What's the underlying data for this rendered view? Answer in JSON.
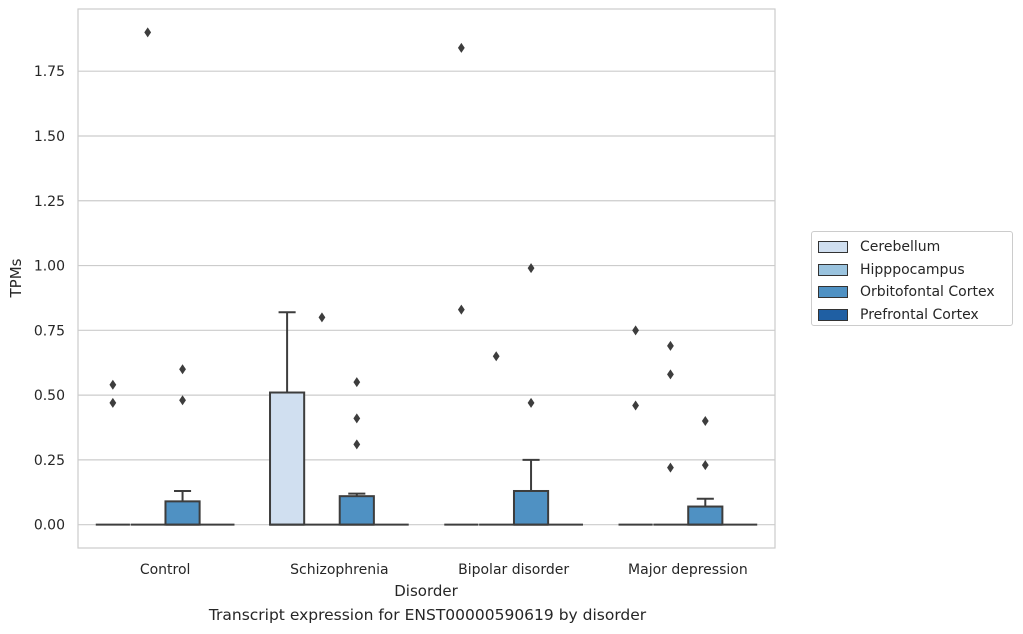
{
  "chart_data": {
    "type": "box",
    "title": "",
    "xlabel": "Disorder",
    "ylabel": "TPMs",
    "caption": "Transcript expression for ENST00000590619 by disorder",
    "ylim": [
      -0.09,
      1.99
    ],
    "yticks": [
      "0.00",
      "0.25",
      "0.50",
      "0.75",
      "1.00",
      "1.25",
      "1.50",
      "1.75"
    ],
    "ytick_values": [
      0,
      0.25,
      0.5,
      0.75,
      1.0,
      1.25,
      1.5,
      1.75
    ],
    "grid": true,
    "legend_position": "right",
    "categories": [
      "Control",
      "Schizophrenia",
      "Bipolar disorder",
      "Major depression"
    ],
    "series": [
      {
        "name": "Cerebellum",
        "color": "#d0dff0",
        "boxes": [
          {
            "q1": 0,
            "median": 0,
            "q3": 0,
            "whisker_low": 0,
            "whisker_high": 0,
            "outliers": [
              0.54,
              0.47
            ]
          },
          {
            "q1": 0,
            "median": 0,
            "q3": 0.51,
            "whisker_low": 0,
            "whisker_high": 0.82,
            "outliers": []
          },
          {
            "q1": 0,
            "median": 0,
            "q3": 0,
            "whisker_low": 0,
            "whisker_high": 0,
            "outliers": [
              1.84,
              0.83
            ]
          },
          {
            "q1": 0,
            "median": 0,
            "q3": 0,
            "whisker_low": 0,
            "whisker_high": 0,
            "outliers": [
              0.75,
              0.46
            ]
          }
        ]
      },
      {
        "name": "Hipppocampus",
        "color": "#9ac3de",
        "boxes": [
          {
            "q1": 0,
            "median": 0,
            "q3": 0,
            "whisker_low": 0,
            "whisker_high": 0,
            "outliers": [
              1.9
            ]
          },
          {
            "q1": 0,
            "median": 0,
            "q3": 0,
            "whisker_low": 0,
            "whisker_high": 0,
            "outliers": [
              0.8
            ]
          },
          {
            "q1": 0,
            "median": 0,
            "q3": 0,
            "whisker_low": 0,
            "whisker_high": 0,
            "outliers": [
              0.65
            ]
          },
          {
            "q1": 0,
            "median": 0,
            "q3": 0,
            "whisker_low": 0,
            "whisker_high": 0,
            "outliers": [
              0.69,
              0.58,
              0.22
            ]
          }
        ]
      },
      {
        "name": "Orbitofontal Cortex",
        "color": "#4f91c3",
        "boxes": [
          {
            "q1": 0,
            "median": 0,
            "q3": 0.09,
            "whisker_low": 0,
            "whisker_high": 0.13,
            "outliers": [
              0.6,
              0.48
            ]
          },
          {
            "q1": 0,
            "median": 0,
            "q3": 0.11,
            "whisker_low": 0,
            "whisker_high": 0.12,
            "outliers": [
              0.55,
              0.41,
              0.31
            ]
          },
          {
            "q1": 0,
            "median": 0,
            "q3": 0.13,
            "whisker_low": 0,
            "whisker_high": 0.25,
            "outliers": [
              0.99,
              0.47
            ]
          },
          {
            "q1": 0,
            "median": 0,
            "q3": 0.07,
            "whisker_low": 0,
            "whisker_high": 0.1,
            "outliers": [
              0.4,
              0.23
            ]
          }
        ]
      },
      {
        "name": "Prefrontal Cortex",
        "color": "#1f5fa3",
        "boxes": [
          {
            "q1": 0,
            "median": 0,
            "q3": 0,
            "whisker_low": 0,
            "whisker_high": 0,
            "outliers": []
          },
          {
            "q1": 0,
            "median": 0,
            "q3": 0,
            "whisker_low": 0,
            "whisker_high": 0,
            "outliers": []
          },
          {
            "q1": 0,
            "median": 0,
            "q3": 0,
            "whisker_low": 0,
            "whisker_high": 0,
            "outliers": []
          },
          {
            "q1": 0,
            "median": 0,
            "q3": 0,
            "whisker_low": 0,
            "whisker_high": 0,
            "outliers": []
          }
        ]
      }
    ]
  }
}
